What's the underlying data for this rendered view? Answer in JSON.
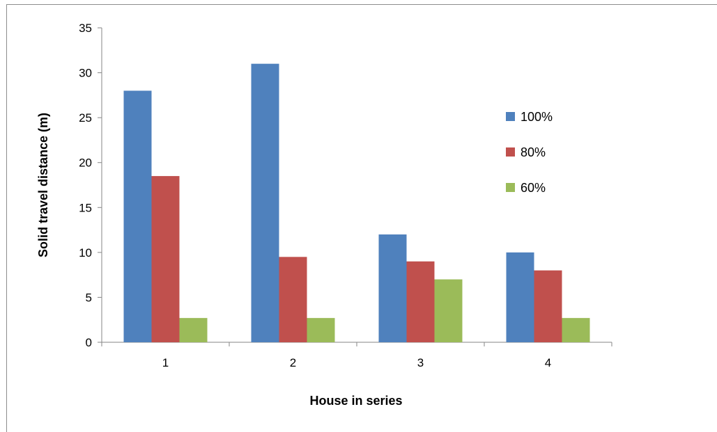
{
  "chart_data": {
    "type": "bar",
    "title": "",
    "xlabel": "House in series",
    "ylabel": "Solid travel distance (m)",
    "categories": [
      "1",
      "2",
      "3",
      "4"
    ],
    "ylim": [
      0,
      35
    ],
    "yticks": [
      0,
      5,
      10,
      15,
      20,
      25,
      30,
      35
    ],
    "grid": false,
    "legend_position": "right",
    "series": [
      {
        "name": "100%",
        "color": "#4f81bd",
        "values": [
          28,
          31,
          12,
          10
        ]
      },
      {
        "name": "80%",
        "color": "#c0504d",
        "values": [
          18.5,
          9.5,
          9,
          8
        ]
      },
      {
        "name": "60%",
        "color": "#9bbb59",
        "values": [
          2.7,
          2.7,
          7,
          2.7
        ]
      }
    ]
  }
}
